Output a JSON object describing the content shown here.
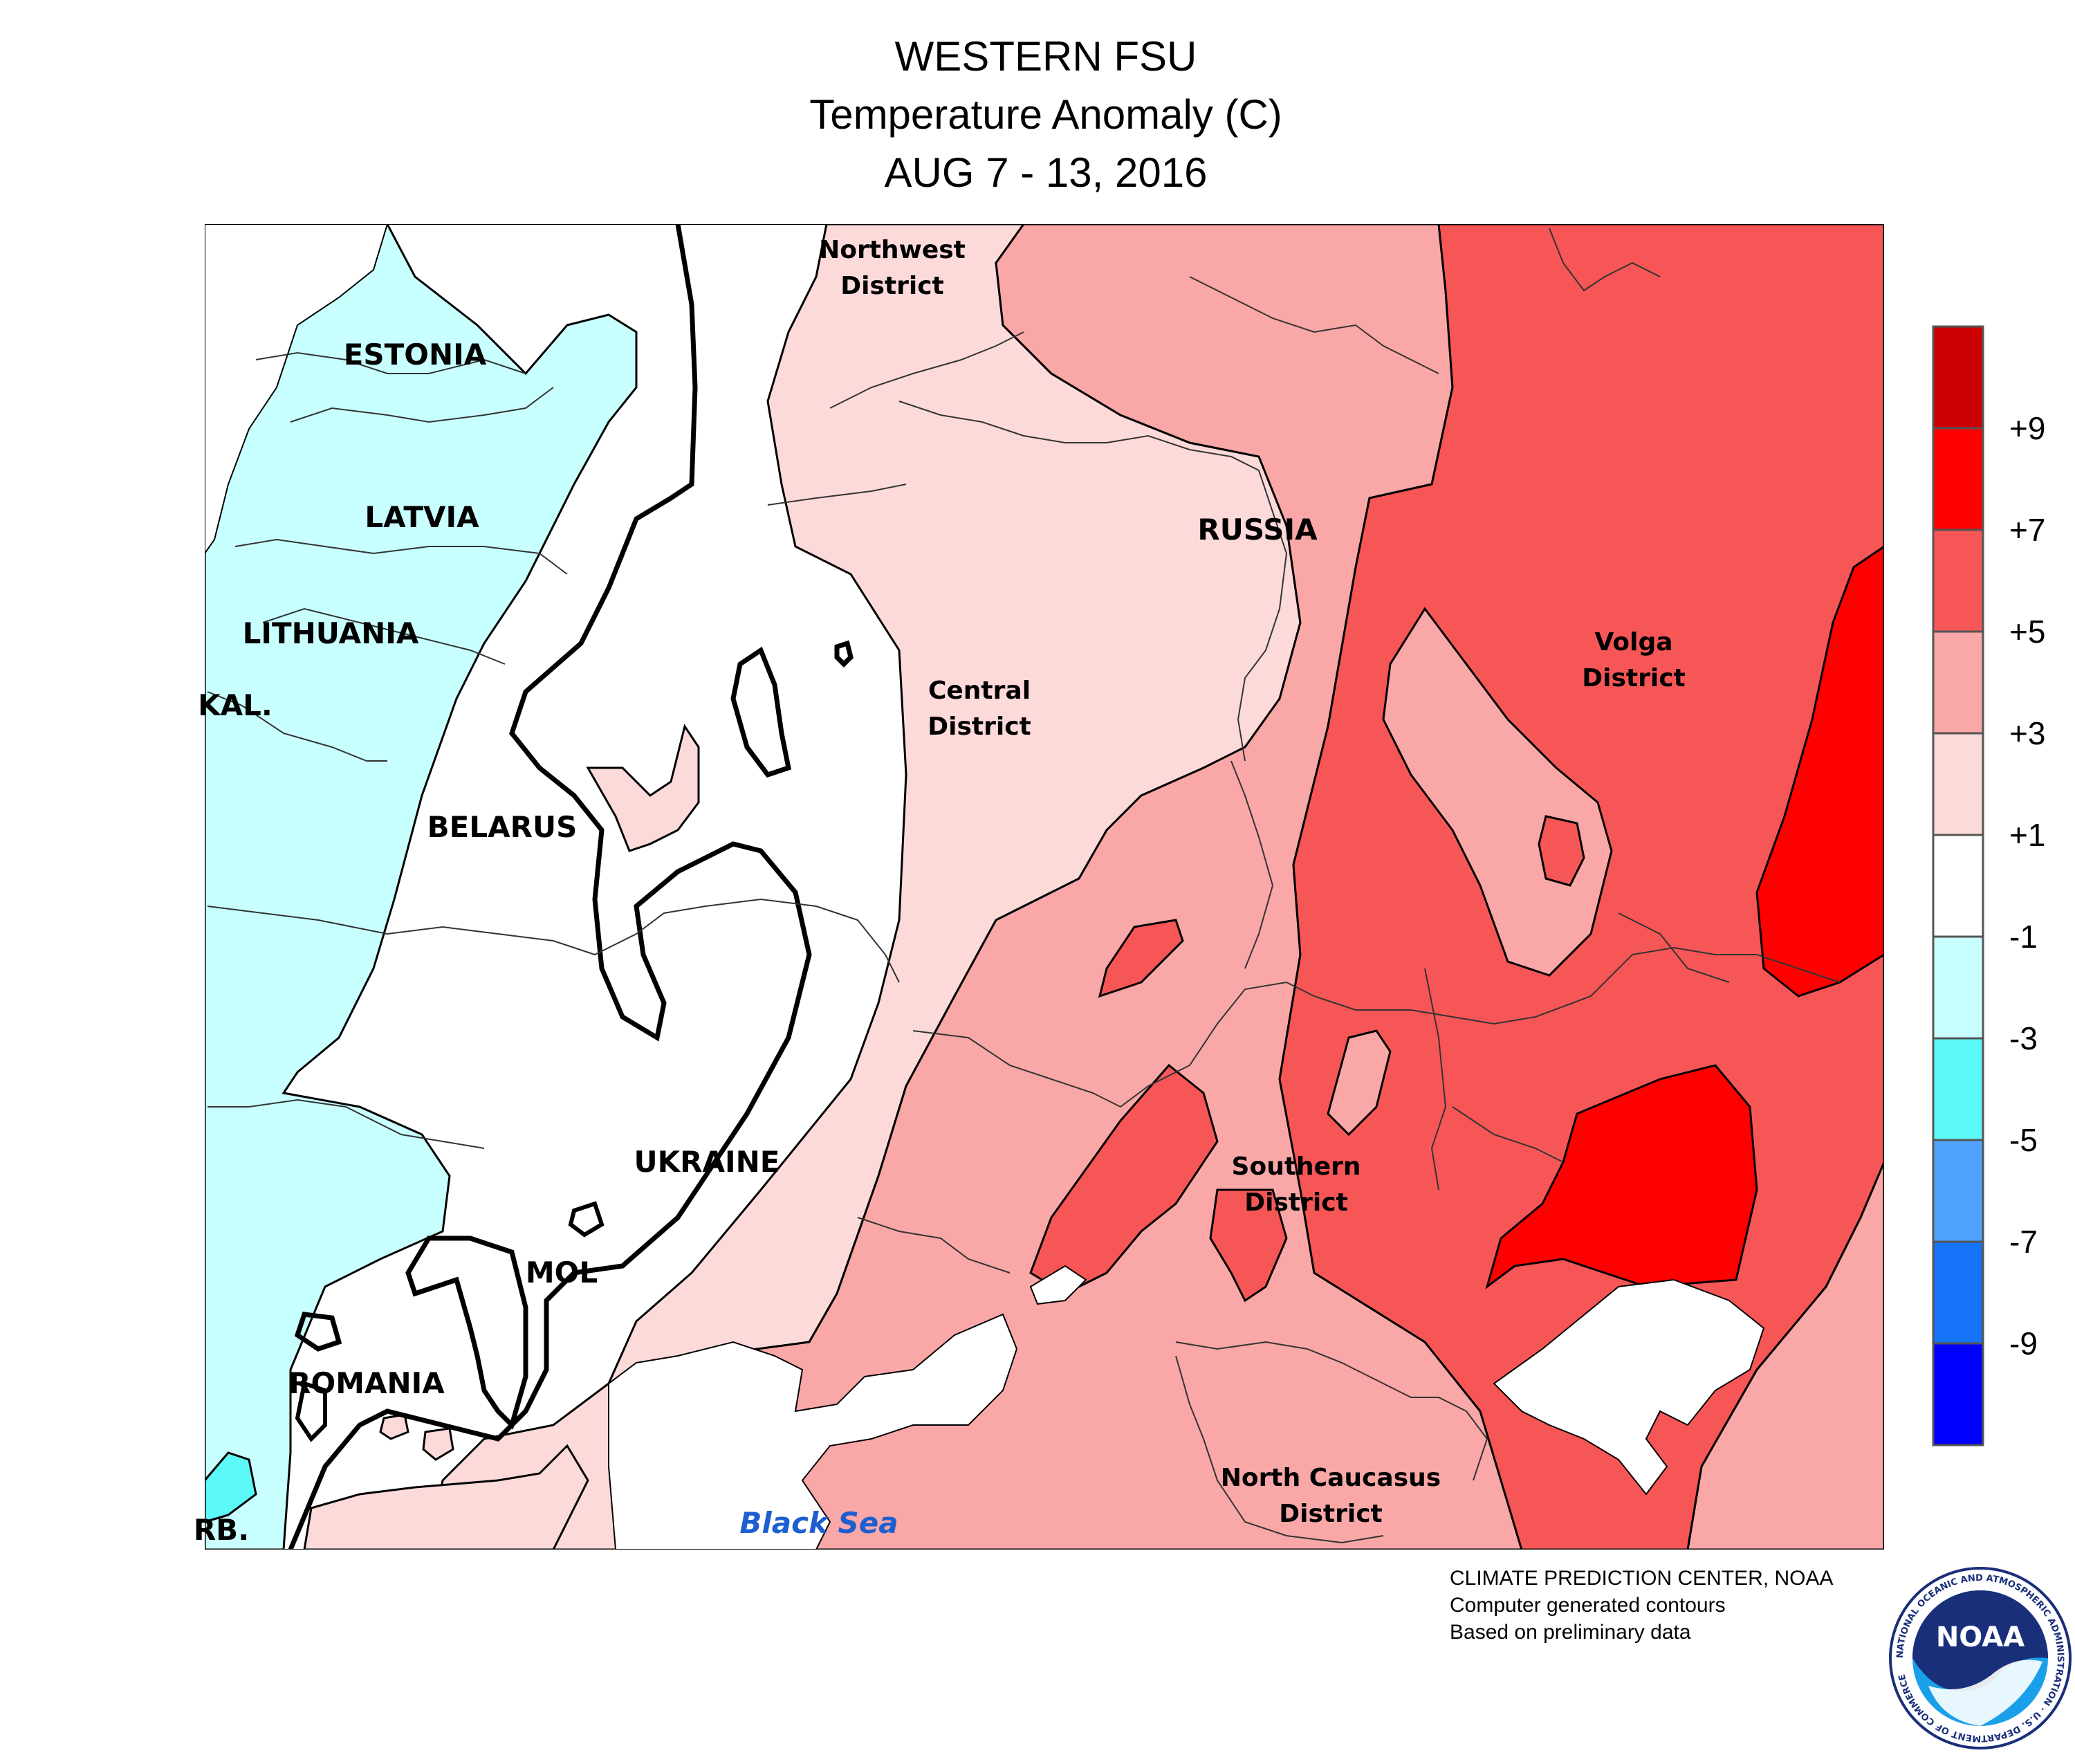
{
  "title": {
    "line1": "WESTERN FSU",
    "line2": "Temperature Anomaly (C)",
    "line3": "AUG 7 - 13, 2016"
  },
  "map_labels": {
    "estonia": "ESTONIA",
    "latvia": "LATVIA",
    "lithuania": "LITHUANIA",
    "kaliningrad": "KAL.",
    "belarus": "BELARUS",
    "ukraine": "UKRAINE",
    "moldova": "MOL",
    "romania": "ROMANIA",
    "serbia": "RB.",
    "russia": "RUSSIA",
    "northwest_district_1": "Northwest",
    "northwest_district_2": "District",
    "central_district_1": "Central",
    "central_district_2": "District",
    "volga_district_1": "Volga",
    "volga_district_2": "District",
    "southern_district_1": "Southern",
    "southern_district_2": "District",
    "north_caucasus_district_1": "North Caucasus",
    "north_caucasus_district_2": "District",
    "black_sea": "Black Sea"
  },
  "legend": {
    "ticks": [
      "+9",
      "+7",
      "+5",
      "+3",
      "+1",
      "-1",
      "-3",
      "-5",
      "-7",
      "-9"
    ],
    "colors": [
      "#cc0000",
      "#ff0000",
      "#f75656",
      "#f9a7a7",
      "#fddada",
      "#ffffff",
      "#c8ffff",
      "#5cf9f9",
      "#50a2ff",
      "#1574f7",
      "#0000ff"
    ]
  },
  "colors": {
    "anomaly_below_minus1": "#c8ffff",
    "anomaly_1_3": "#fddada",
    "anomaly_3_5": "#f9a7a7",
    "anomaly_5_7": "#f75656",
    "anomaly_7_9": "#ff0000",
    "black_sea_label": "#1d5fd0"
  },
  "credit": {
    "line1": "CLIMATE PREDICTION CENTER, NOAA",
    "line2": "Computer generated contours",
    "line3": "Based on preliminary data"
  },
  "logo": {
    "text": "NOAA",
    "ring_text": "NATIONAL OCEANIC AND ATMOSPHERIC ADMINISTRATION · U.S. DEPARTMENT OF COMMERCE"
  }
}
